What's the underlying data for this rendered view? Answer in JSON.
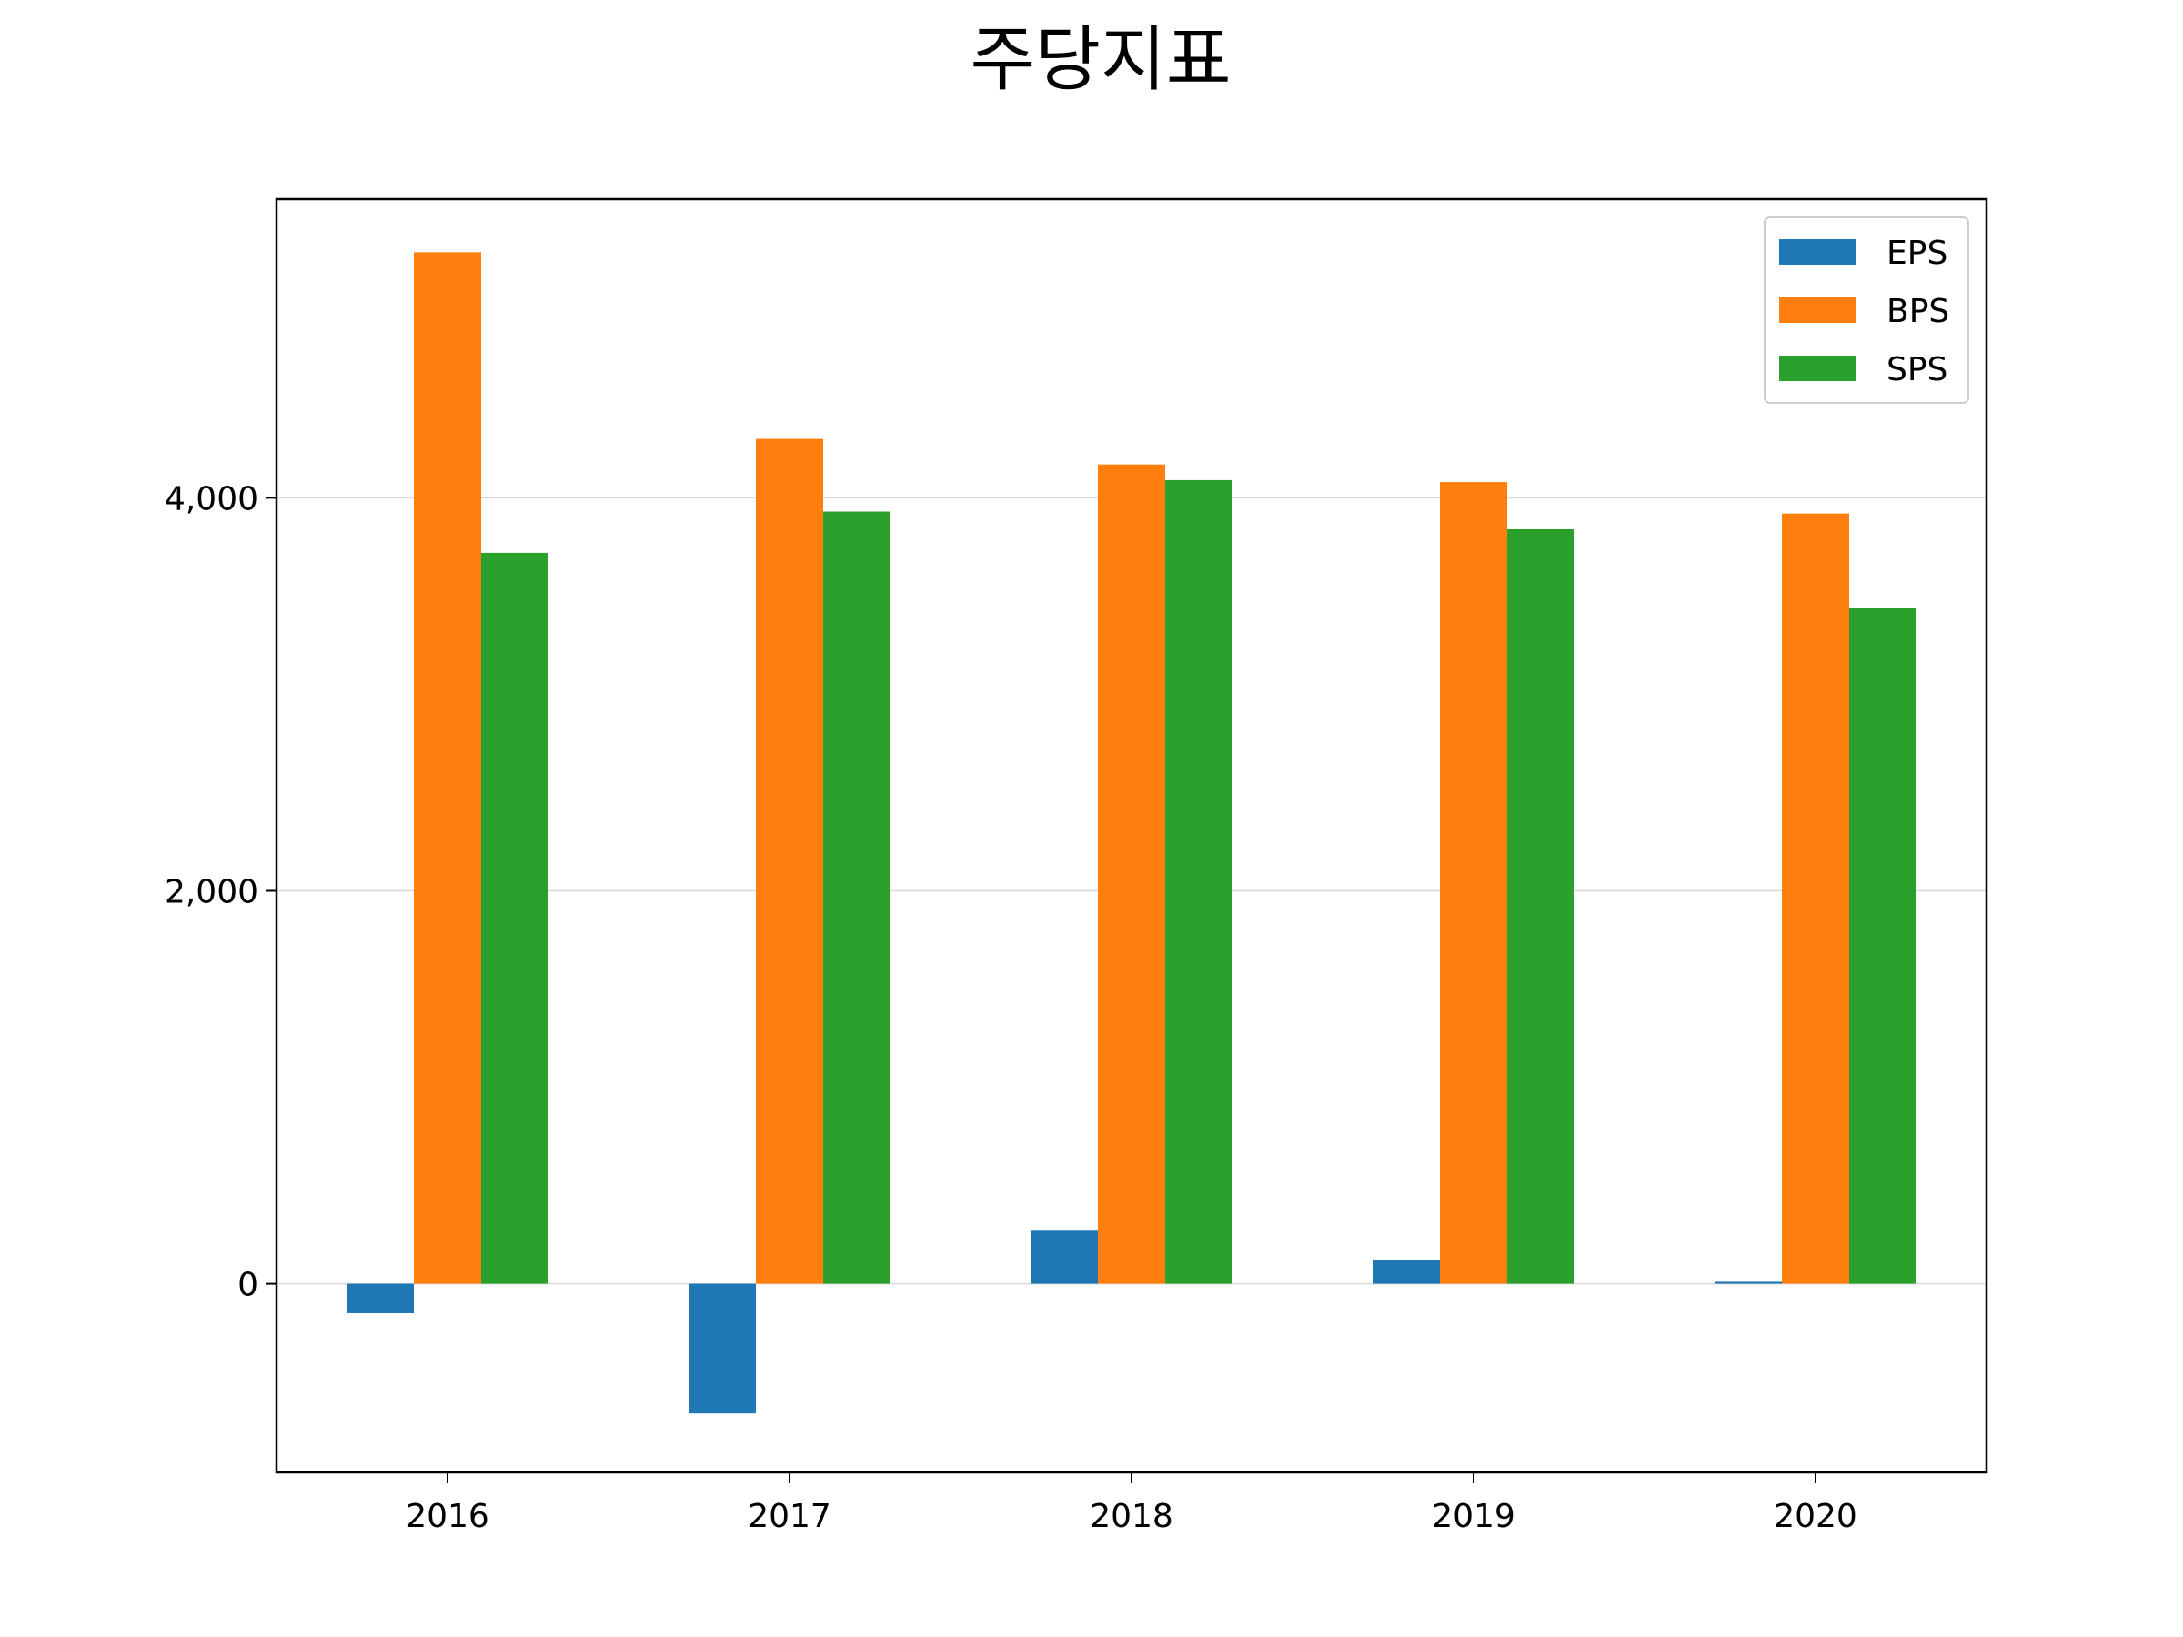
{
  "chart_data": {
    "type": "bar",
    "title": "주당지표",
    "xlabel": "",
    "ylabel": "",
    "categories": [
      "2016",
      "2017",
      "2018",
      "2019",
      "2020"
    ],
    "series": [
      {
        "name": "EPS",
        "color": "#1f77b4",
        "values": [
          -150,
          -660,
          270,
          120,
          10
        ]
      },
      {
        "name": "BPS",
        "color": "#ff7f0e",
        "values": [
          5250,
          4300,
          4170,
          4080,
          3920
        ]
      },
      {
        "name": "SPS",
        "color": "#2ca02c",
        "values": [
          3720,
          3930,
          4090,
          3840,
          3440
        ]
      }
    ],
    "ylim": [
      -960,
      5520
    ],
    "yticks": [
      0,
      2000,
      4000
    ],
    "ytick_labels": [
      "0",
      "2,000",
      "4,000"
    ],
    "grid": "horizontal",
    "legend_position": "top-right"
  }
}
